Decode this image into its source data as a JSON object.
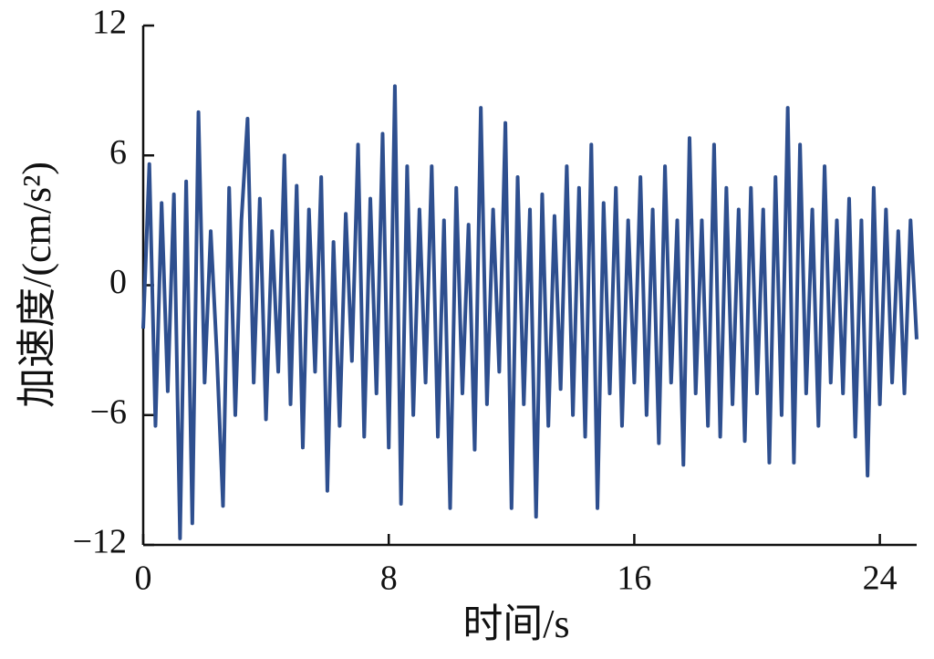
{
  "chart_data": {
    "type": "line",
    "x_label": "时间/s",
    "y_label": "加速度/(cm/s²)",
    "x": [
      0,
      0.2,
      0.4,
      0.6,
      0.8,
      1,
      1.2,
      1.4,
      1.6,
      1.8,
      2,
      2.2,
      2.4,
      2.6,
      2.8,
      3,
      3.2,
      3.4,
      3.6,
      3.8,
      4,
      4.2,
      4.4,
      4.6,
      4.8,
      5,
      5.2,
      5.4,
      5.6,
      5.8,
      6,
      6.2,
      6.4,
      6.6,
      6.8,
      7,
      7.2,
      7.4,
      7.6,
      7.8,
      8,
      8.2,
      8.4,
      8.6,
      8.8,
      9,
      9.2,
      9.4,
      9.6,
      9.8,
      10,
      10.2,
      10.4,
      10.6,
      10.8,
      11,
      11.2,
      11.4,
      11.6,
      11.8,
      12,
      12.2,
      12.4,
      12.6,
      12.8,
      13,
      13.2,
      13.4,
      13.6,
      13.8,
      14,
      14.2,
      14.4,
      14.6,
      14.8,
      15,
      15.2,
      15.4,
      15.6,
      15.8,
      16,
      16.2,
      16.4,
      16.6,
      16.8,
      17,
      17.2,
      17.4,
      17.6,
      17.8,
      18,
      18.2,
      18.4,
      18.6,
      18.8,
      19,
      19.2,
      19.4,
      19.6,
      19.8,
      20,
      20.2,
      20.4,
      20.6,
      20.8,
      21,
      21.2,
      21.4,
      21.6,
      21.8,
      22,
      22.2,
      22.4,
      22.6,
      22.8,
      23,
      23.2,
      23.4,
      23.6,
      23.8,
      24,
      24.2,
      24.4,
      24.6,
      24.8,
      25,
      25.2
    ],
    "series": [
      {
        "color": "#2e4f8f",
        "values": [
          -2,
          5.6,
          -6.5,
          3.8,
          -4.9,
          4.2,
          -11.7,
          4.8,
          -11,
          8,
          -4.5,
          2.5,
          -3.2,
          -10.2,
          4.5,
          -6,
          3,
          7.7,
          -4.5,
          4,
          -6.2,
          2.5,
          -4,
          6,
          -5.5,
          4.6,
          -7.5,
          3.5,
          -4,
          5,
          -9.5,
          2,
          -6.5,
          3.3,
          -3.5,
          6.5,
          -7,
          4,
          -5,
          7,
          -7.5,
          9.2,
          -10.1,
          5.5,
          -6,
          3.5,
          -4.5,
          5.5,
          -7,
          3,
          -10.3,
          4.5,
          -5,
          2.8,
          -7.6,
          8.2,
          -5.5,
          3.5,
          -4,
          7.5,
          -10.3,
          5,
          -5.5,
          3.5,
          -10.7,
          4.2,
          -6.5,
          3.2,
          -4.8,
          5.5,
          -6,
          4.5,
          -7,
          6.5,
          -10.3,
          3.8,
          -5,
          4.5,
          -6.5,
          3,
          -4.5,
          5,
          -6,
          3.5,
          -7.3,
          5.5,
          -4.5,
          3,
          -8.3,
          6.8,
          -5,
          3,
          -6.5,
          6.5,
          -7,
          4.5,
          -5.5,
          3.5,
          -7.2,
          4.5,
          -5,
          3.5,
          -8.2,
          5,
          -6,
          8.2,
          -8.2,
          6.5,
          -5,
          3.5,
          -6.5,
          5.5,
          -4.5,
          3,
          -5,
          4,
          -7,
          3,
          -8.8,
          4.5,
          -5.5,
          3.5,
          -4.5,
          2.5,
          -5,
          3,
          -2.5
        ]
      }
    ],
    "xlim": [
      0,
      25.2
    ],
    "xticks": [
      0,
      8,
      16,
      24
    ],
    "ylim": [
      -12,
      12
    ],
    "yticks": [
      {
        "value": -12,
        "label": "−12"
      },
      {
        "value": -6,
        "label": "−6"
      },
      0,
      6,
      12
    ]
  }
}
